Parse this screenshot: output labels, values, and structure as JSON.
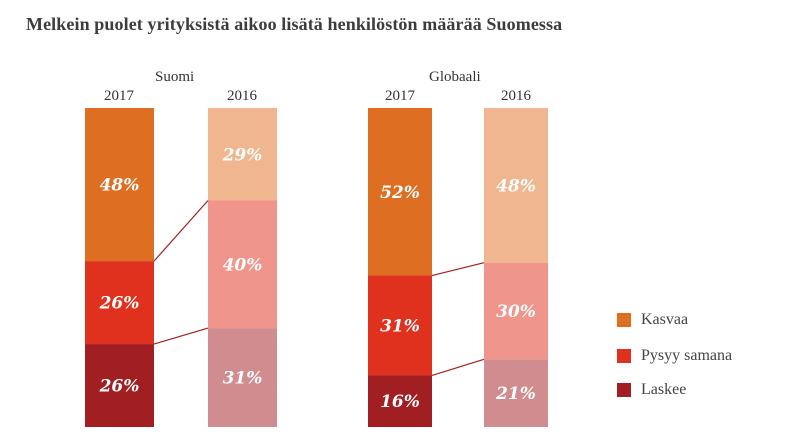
{
  "chart_data": {
    "type": "bar",
    "stacked": true,
    "title": "Melkein puolet yrityksistä aikoo lisätä henkilöstön määrää Suomessa",
    "groups": [
      {
        "name": "Suomi",
        "bars": [
          {
            "year": "2017",
            "values": [
              48,
              26,
              26
            ],
            "labels": [
              "48%",
              "26%",
              "26%"
            ]
          },
          {
            "year": "2016",
            "values": [
              29,
              40,
              31
            ],
            "labels": [
              "29%",
              "40%",
              "31%"
            ]
          }
        ]
      },
      {
        "name": "Globaali",
        "bars": [
          {
            "year": "2017",
            "values": [
              52,
              31,
              16
            ],
            "labels": [
              "52%",
              "31%",
              "16%"
            ]
          },
          {
            "year": "2016",
            "values": [
              48,
              30,
              21
            ],
            "labels": [
              "48%",
              "30%",
              "21%"
            ]
          }
        ]
      }
    ],
    "series": [
      {
        "name": "Kasvaa",
        "color_2017": "#DD6E22",
        "color_2016": "#EFB690"
      },
      {
        "name": "Pysyy samana",
        "color_2017": "#E0301E",
        "color_2016": "#F0958B"
      },
      {
        "name": "Laskee",
        "color_2017": "#A11F22",
        "color_2016": "#D08C8E"
      }
    ],
    "connector_color": "#A32020",
    "legend_position": "right-bottom"
  }
}
